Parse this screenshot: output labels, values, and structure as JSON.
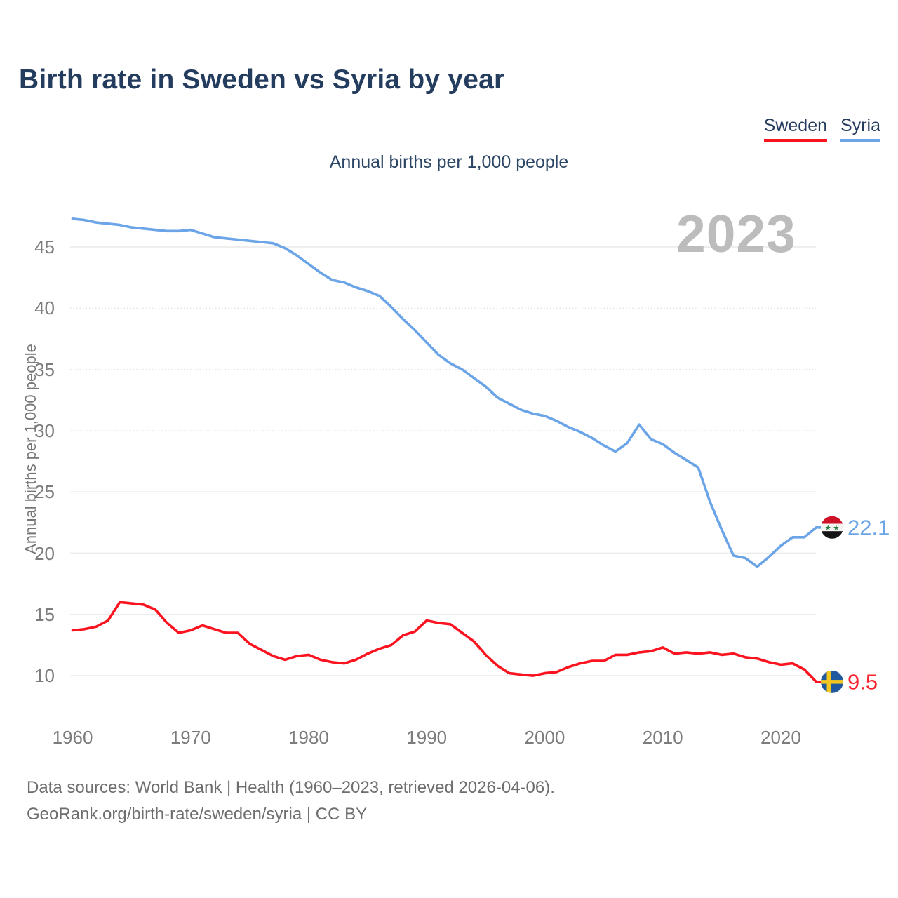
{
  "title": "Birth rate in Sweden vs Syria by year",
  "subtitle": "Annual births per 1,000 people",
  "watermark": "2023",
  "legend": [
    {
      "label": "Sweden",
      "color": "#fb1420"
    },
    {
      "label": "Syria",
      "color": "#6ba4e7"
    }
  ],
  "y_axis": {
    "title": "Annual births per 1,000 people",
    "ticks": [
      45,
      40,
      35,
      30,
      25,
      20,
      15,
      10
    ],
    "dotted_gridlines": [
      40,
      35,
      30
    ]
  },
  "x_axis": {
    "ticks": [
      1960,
      1970,
      1980,
      1990,
      2000,
      2010,
      2020
    ]
  },
  "end_labels": [
    {
      "series": "Syria",
      "value": "22.1",
      "flag": "syria-flag",
      "color": "#6ba4e7"
    },
    {
      "series": "Sweden",
      "value": "9.5",
      "flag": "sweden-flag",
      "color": "#f8232e"
    }
  ],
  "footer": {
    "line1": "Data sources: World Bank | Health (1960–2023, retrieved 2026-04-06).",
    "line2": "GeoRank.org/birth-rate/sweden/syria | CC BY"
  },
  "chart_data": {
    "type": "line",
    "title": "Birth rate in Sweden vs Syria by year",
    "ylabel": "Annual births per 1,000 people",
    "ylim": [
      8.5,
      48.5
    ],
    "xlim": [
      1960,
      2023
    ],
    "grid": "horizontal",
    "legend_position": "top-right",
    "x": [
      1960,
      1961,
      1962,
      1963,
      1964,
      1965,
      1966,
      1967,
      1968,
      1969,
      1970,
      1971,
      1972,
      1973,
      1974,
      1975,
      1976,
      1977,
      1978,
      1979,
      1980,
      1981,
      1982,
      1983,
      1984,
      1985,
      1986,
      1987,
      1988,
      1989,
      1990,
      1991,
      1992,
      1993,
      1994,
      1995,
      1996,
      1997,
      1998,
      1999,
      2000,
      2001,
      2002,
      2003,
      2004,
      2005,
      2006,
      2007,
      2008,
      2009,
      2010,
      2011,
      2012,
      2013,
      2014,
      2015,
      2016,
      2017,
      2018,
      2019,
      2020,
      2021,
      2022,
      2023
    ],
    "series": [
      {
        "name": "Sweden",
        "color": "#fb1420",
        "end_value": 9.5,
        "values": [
          13.7,
          13.8,
          14.0,
          14.5,
          16.0,
          15.9,
          15.8,
          15.4,
          14.3,
          13.5,
          13.7,
          14.1,
          13.8,
          13.5,
          13.5,
          12.6,
          12.1,
          11.6,
          11.3,
          11.6,
          11.7,
          11.3,
          11.1,
          11.0,
          11.3,
          11.8,
          12.2,
          12.5,
          13.3,
          13.6,
          14.5,
          14.3,
          14.2,
          13.5,
          12.8,
          11.7,
          10.8,
          10.2,
          10.1,
          10.0,
          10.2,
          10.3,
          10.7,
          11.0,
          11.2,
          11.2,
          11.7,
          11.7,
          11.9,
          12.0,
          12.3,
          11.8,
          11.9,
          11.8,
          11.9,
          11.7,
          11.8,
          11.5,
          11.4,
          11.1,
          10.9,
          11.0,
          10.5,
          9.5
        ]
      },
      {
        "name": "Syria",
        "color": "#6ba4e7",
        "end_value": 22.1,
        "values": [
          47.3,
          47.2,
          47.0,
          46.9,
          46.8,
          46.6,
          46.5,
          46.4,
          46.3,
          46.3,
          46.4,
          46.1,
          45.8,
          45.7,
          45.6,
          45.5,
          45.4,
          45.3,
          44.9,
          44.3,
          43.6,
          42.9,
          42.3,
          42.1,
          41.7,
          41.4,
          41.0,
          40.1,
          39.1,
          38.2,
          37.2,
          36.2,
          35.5,
          35.0,
          34.3,
          33.6,
          32.7,
          32.2,
          31.7,
          31.4,
          31.2,
          30.8,
          30.3,
          29.9,
          29.4,
          28.8,
          28.3,
          29.0,
          30.5,
          29.3,
          28.9,
          28.2,
          27.6,
          27.0,
          24.2,
          21.9,
          19.8,
          19.6,
          18.9,
          19.7,
          20.6,
          21.3,
          21.3,
          22.1
        ]
      }
    ],
    "flag_colors": {
      "syria": {
        "red": "#ce1126",
        "white": "#f4f4f4",
        "black": "#151515",
        "star_green": "#217a38"
      },
      "sweden": {
        "blue": "#20599f",
        "yellow": "#f3c620"
      }
    }
  }
}
